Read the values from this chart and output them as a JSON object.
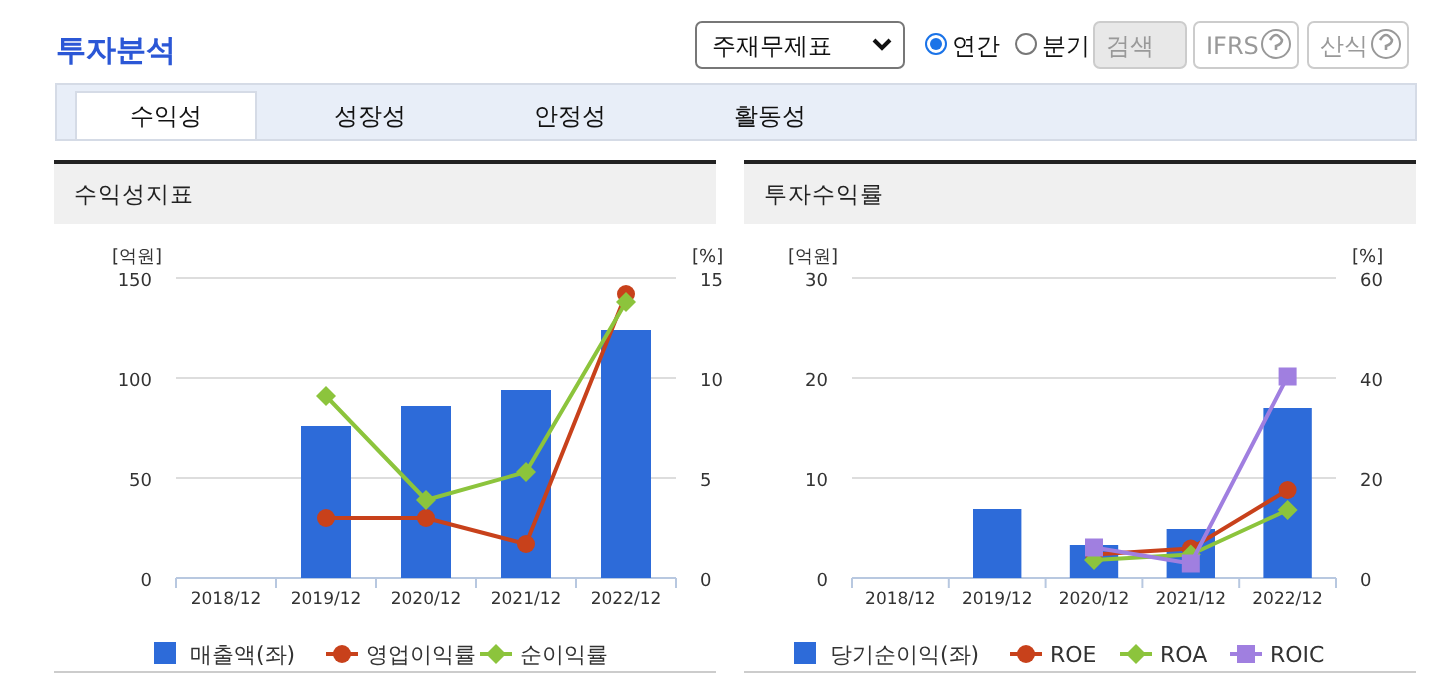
{
  "chart_data": [
    {
      "type": "other",
      "title": "투자분석",
      "annotations": [
        "주재무제표",
        "연간",
        "분기",
        "검색",
        "IFRS",
        "산식",
        "수익성",
        "성장성",
        "안정성",
        "활동성"
      ]
    },
    {
      "type": "bar",
      "title": "수익성지표",
      "ylabel": "[억원]",
      "y2label": "[%]",
      "categories": [
        "2018/12",
        "2019/12",
        "2020/12",
        "2021/12",
        "2022/12"
      ],
      "ylim": [
        0,
        150
      ],
      "yticks": [
        0,
        50,
        100,
        150
      ],
      "y2lim": [
        0,
        15
      ],
      "y2ticks": [
        0,
        5,
        10,
        15
      ],
      "grid": "y",
      "legend": "bottom",
      "series": [
        {
          "name": "매출액(좌)",
          "type": "bar",
          "color": "#2d6bd9",
          "values": [
            null,
            76,
            86,
            94,
            124
          ]
        },
        {
          "name": "영업이익률",
          "type": "line",
          "axis": "y2",
          "marker": "circle",
          "color": "#c8411b",
          "values": [
            null,
            3.0,
            3.0,
            1.7,
            14.2
          ]
        },
        {
          "name": "순이익률",
          "type": "line",
          "axis": "y2",
          "marker": "diamond",
          "color": "#8cc43c",
          "values": [
            null,
            9.1,
            3.9,
            5.3,
            13.8
          ]
        }
      ]
    },
    {
      "type": "bar",
      "title": "투자수익률",
      "ylabel": "[억원]",
      "y2label": "[%]",
      "categories": [
        "2018/12",
        "2019/12",
        "2020/12",
        "2021/12",
        "2022/12"
      ],
      "ylim": [
        0,
        30
      ],
      "yticks": [
        0,
        10,
        20,
        30
      ],
      "y2lim": [
        0,
        60
      ],
      "y2ticks": [
        0,
        20,
        40,
        60
      ],
      "grid": "y",
      "legend": "bottom",
      "series": [
        {
          "name": "당기순이익(좌)",
          "type": "bar",
          "color": "#2d6bd9",
          "values": [
            null,
            6.9,
            3.3,
            4.9,
            17.0
          ]
        },
        {
          "name": "ROE",
          "type": "line",
          "axis": "y2",
          "marker": "circle",
          "color": "#c8411b",
          "values": [
            null,
            null,
            4.7,
            5.9,
            17.6
          ]
        },
        {
          "name": "ROA",
          "type": "line",
          "axis": "y2",
          "marker": "diamond",
          "color": "#8cc43c",
          "values": [
            null,
            null,
            3.6,
            4.7,
            13.6
          ]
        },
        {
          "name": "ROIC",
          "type": "line",
          "axis": "y2",
          "marker": "square",
          "color": "#a07fe0",
          "values": [
            null,
            null,
            6.1,
            2.9,
            40.3
          ]
        }
      ]
    }
  ]
}
